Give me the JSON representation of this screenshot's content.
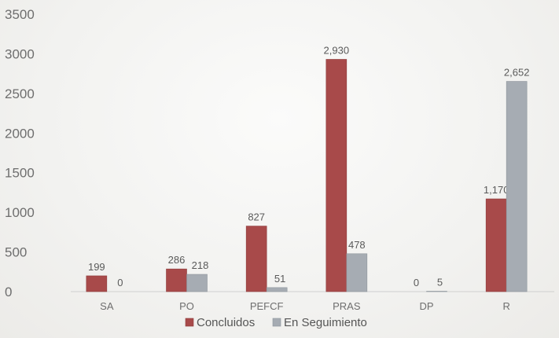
{
  "chart_data": {
    "type": "bar",
    "categories": [
      "SA",
      "PO",
      "PEFCF",
      "PRAS",
      "DP",
      "R"
    ],
    "series": [
      {
        "name": "Concluidos",
        "values": [
          199,
          286,
          827,
          2930,
          0,
          1170
        ],
        "labels": [
          "199",
          "286",
          "827",
          "2,930",
          "0",
          "1,170"
        ]
      },
      {
        "name": "En Seguimiento",
        "values": [
          0,
          218,
          51,
          478,
          5,
          2652
        ],
        "labels": [
          "0",
          "218",
          "51",
          "478",
          "5",
          "2,652"
        ]
      }
    ],
    "yticks": [
      "0",
      "500",
      "1000",
      "1500",
      "2000",
      "2500",
      "3000",
      "3500"
    ],
    "ylim": [
      0,
      3500
    ],
    "legend_position": "bottom",
    "grid": false,
    "colors": {
      "Concluidos": "#a84a4a",
      "En Seguimiento": "#a6acb3"
    }
  }
}
